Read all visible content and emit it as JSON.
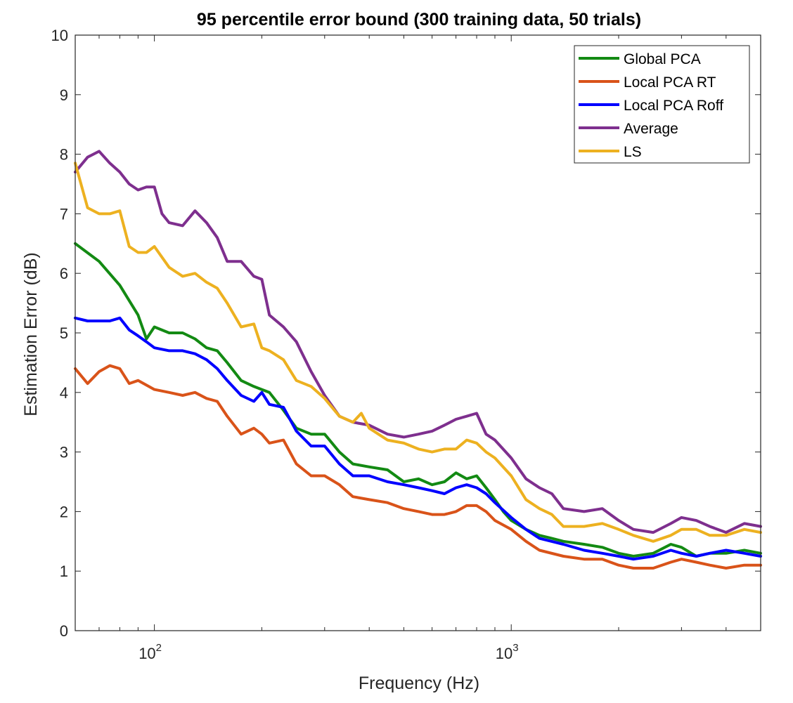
{
  "chart_data": {
    "type": "line",
    "title": "95 percentile error bound (300 training data, 50 trials)",
    "xlabel": "Frequency (Hz)",
    "ylabel": "Estimation Error (dB)",
    "xscale": "log",
    "xlim": [
      60,
      5000
    ],
    "ylim": [
      0,
      10
    ],
    "yticks": [
      "0",
      "1",
      "2",
      "3",
      "4",
      "5",
      "6",
      "7",
      "8",
      "9",
      "10"
    ],
    "xticks": [
      {
        "value": 100,
        "base": "10",
        "exp": "2"
      },
      {
        "value": 1000,
        "base": "10",
        "exp": "3"
      }
    ],
    "legend_position": "top-right",
    "series": [
      {
        "name": "Global PCA",
        "color": "#138a13",
        "x": [
          60,
          70,
          80,
          90,
          95,
          100,
          110,
          120,
          130,
          140,
          150,
          160,
          175,
          190,
          200,
          210,
          230,
          250,
          275,
          300,
          330,
          360,
          400,
          450,
          500,
          550,
          600,
          650,
          700,
          750,
          800,
          850,
          900,
          950,
          1000,
          1100,
          1200,
          1300,
          1400,
          1600,
          1800,
          2000,
          2200,
          2500,
          2800,
          3000,
          3300,
          3600,
          4000,
          4500,
          5000
        ],
        "values": [
          6.5,
          6.2,
          5.8,
          5.3,
          4.9,
          5.1,
          5.0,
          5.0,
          4.9,
          4.75,
          4.7,
          4.5,
          4.2,
          4.1,
          4.05,
          4.0,
          3.7,
          3.4,
          3.3,
          3.3,
          3.0,
          2.8,
          2.75,
          2.7,
          2.5,
          2.55,
          2.45,
          2.5,
          2.65,
          2.55,
          2.6,
          2.4,
          2.2,
          2.0,
          1.85,
          1.7,
          1.6,
          1.55,
          1.5,
          1.45,
          1.4,
          1.3,
          1.25,
          1.3,
          1.45,
          1.4,
          1.25,
          1.3,
          1.3,
          1.35,
          1.3
        ]
      },
      {
        "name": "Local PCA RT",
        "color": "#d95319",
        "x": [
          60,
          65,
          70,
          75,
          80,
          85,
          90,
          100,
          110,
          120,
          130,
          140,
          150,
          160,
          175,
          190,
          200,
          210,
          230,
          250,
          275,
          300,
          330,
          360,
          400,
          450,
          500,
          550,
          600,
          650,
          700,
          750,
          800,
          850,
          900,
          1000,
          1100,
          1200,
          1400,
          1600,
          1800,
          2000,
          2200,
          2500,
          2800,
          3000,
          3300,
          3600,
          4000,
          4500,
          5000
        ],
        "values": [
          4.4,
          4.15,
          4.35,
          4.45,
          4.4,
          4.15,
          4.2,
          4.05,
          4.0,
          3.95,
          4.0,
          3.9,
          3.85,
          3.6,
          3.3,
          3.4,
          3.3,
          3.15,
          3.2,
          2.8,
          2.6,
          2.6,
          2.45,
          2.25,
          2.2,
          2.15,
          2.05,
          2.0,
          1.95,
          1.95,
          2.0,
          2.1,
          2.1,
          2.0,
          1.85,
          1.7,
          1.5,
          1.35,
          1.25,
          1.2,
          1.2,
          1.1,
          1.05,
          1.05,
          1.15,
          1.2,
          1.15,
          1.1,
          1.05,
          1.1,
          1.1
        ]
      },
      {
        "name": "Local PCA Roff",
        "color": "#0000ff",
        "x": [
          60,
          65,
          70,
          75,
          80,
          85,
          90,
          95,
          100,
          110,
          120,
          130,
          140,
          150,
          160,
          175,
          190,
          200,
          210,
          230,
          250,
          275,
          300,
          330,
          360,
          400,
          450,
          500,
          550,
          600,
          650,
          700,
          750,
          800,
          850,
          900,
          1000,
          1100,
          1200,
          1400,
          1600,
          1800,
          2000,
          2200,
          2500,
          2800,
          3000,
          3300,
          3600,
          4000,
          4500,
          5000
        ],
        "values": [
          5.25,
          5.2,
          5.2,
          5.2,
          5.25,
          5.05,
          4.95,
          4.85,
          4.75,
          4.7,
          4.7,
          4.65,
          4.55,
          4.4,
          4.2,
          3.95,
          3.85,
          4.0,
          3.8,
          3.75,
          3.35,
          3.1,
          3.1,
          2.8,
          2.6,
          2.6,
          2.5,
          2.45,
          2.4,
          2.35,
          2.3,
          2.4,
          2.45,
          2.4,
          2.3,
          2.15,
          1.9,
          1.7,
          1.55,
          1.45,
          1.35,
          1.3,
          1.25,
          1.2,
          1.25,
          1.35,
          1.3,
          1.25,
          1.3,
          1.35,
          1.3,
          1.25
        ]
      },
      {
        "name": "Average",
        "color": "#7e2f8e",
        "x": [
          60,
          65,
          70,
          75,
          80,
          85,
          90,
          95,
          100,
          105,
          110,
          120,
          130,
          140,
          150,
          160,
          175,
          190,
          200,
          210,
          230,
          250,
          275,
          300,
          330,
          360,
          400,
          450,
          500,
          550,
          600,
          650,
          700,
          750,
          800,
          850,
          900,
          1000,
          1100,
          1200,
          1300,
          1400,
          1600,
          1800,
          2000,
          2200,
          2500,
          2800,
          3000,
          3300,
          3600,
          4000,
          4500,
          5000
        ],
        "values": [
          7.7,
          7.95,
          8.05,
          7.85,
          7.7,
          7.5,
          7.4,
          7.45,
          7.45,
          7.0,
          6.85,
          6.8,
          7.05,
          6.85,
          6.6,
          6.2,
          6.2,
          5.95,
          5.9,
          5.3,
          5.1,
          4.85,
          4.35,
          3.95,
          3.6,
          3.5,
          3.45,
          3.3,
          3.25,
          3.3,
          3.35,
          3.45,
          3.55,
          3.6,
          3.65,
          3.3,
          3.2,
          2.9,
          2.55,
          2.4,
          2.3,
          2.05,
          2.0,
          2.05,
          1.85,
          1.7,
          1.65,
          1.8,
          1.9,
          1.85,
          1.75,
          1.65,
          1.8,
          1.75
        ]
      },
      {
        "name": "LS",
        "color": "#edb120",
        "x": [
          60,
          65,
          70,
          75,
          80,
          85,
          90,
          95,
          100,
          110,
          120,
          130,
          140,
          150,
          160,
          175,
          190,
          200,
          210,
          230,
          250,
          275,
          300,
          330,
          360,
          380,
          400,
          450,
          500,
          550,
          600,
          650,
          700,
          750,
          800,
          850,
          900,
          1000,
          1100,
          1200,
          1300,
          1400,
          1600,
          1800,
          2000,
          2200,
          2500,
          2800,
          3000,
          3300,
          3600,
          4000,
          4500,
          5000
        ],
        "values": [
          7.85,
          7.1,
          7.0,
          7.0,
          7.05,
          6.45,
          6.35,
          6.35,
          6.45,
          6.1,
          5.95,
          6.0,
          5.85,
          5.75,
          5.5,
          5.1,
          5.15,
          4.75,
          4.7,
          4.55,
          4.2,
          4.1,
          3.9,
          3.6,
          3.5,
          3.65,
          3.4,
          3.2,
          3.15,
          3.05,
          3.0,
          3.05,
          3.05,
          3.2,
          3.15,
          3.0,
          2.9,
          2.6,
          2.2,
          2.05,
          1.95,
          1.75,
          1.75,
          1.8,
          1.7,
          1.6,
          1.5,
          1.6,
          1.7,
          1.7,
          1.6,
          1.6,
          1.7,
          1.65
        ]
      }
    ]
  }
}
